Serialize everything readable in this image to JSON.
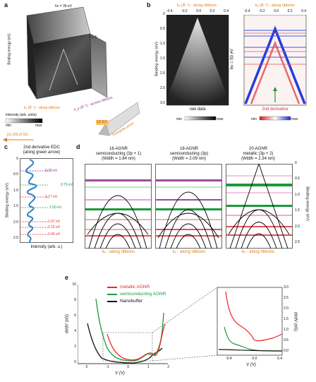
{
  "panels": {
    "a": "a",
    "b": "b",
    "c": "c",
    "d": "d",
    "e": "e"
  },
  "a": {
    "hv": "hν = 39 eV",
    "scale": "× 1.5",
    "y_label": "Binding energy (eV)",
    "y_ticks": [
      "0",
      "0.5",
      "1.0",
      "1.5",
      "2.0",
      "2.5",
      "3.0",
      "3.5",
      "4.0"
    ],
    "kx_label": "kₓ (Å⁻¹) - along ribbons",
    "ky_label": "k_y (Å⁻¹) - across ribbons",
    "colorbar_label": "Intensity (arb. units)",
    "cb_min": "min",
    "cb_max": "max",
    "sic_label": "[11-20] of SiC",
    "bz_label": "1D BZ",
    "prism_label": "triangular prism"
  },
  "b": {
    "top_axis_label": "kₓ (Å⁻¹) - along ribbons",
    "top_ticks": [
      "-0.4",
      "-0.2",
      "0.0",
      "0.2",
      "0.4"
    ],
    "y_label": "Binding energy (eV)",
    "y_ticks": [
      "0",
      "0.5",
      "1.0",
      "1.5",
      "2.0",
      "2.5",
      "3.0"
    ],
    "hv": "hν = 50 eV",
    "raw_label": "raw data",
    "deriv_label": "2nd derivative",
    "cb_min": "min",
    "cb_max": "max"
  },
  "c": {
    "title1": "2nd derivative EDC",
    "title2": "(along green arrow)",
    "y_label": "Binding energy (eV)",
    "x_label": "Intensity (arb. u.)",
    "y_ticks": [
      "0",
      "0.5",
      "1.0",
      "1.5",
      "2.0",
      "2.5"
    ],
    "peaks": [
      "0.38 eV",
      "0.79 eV",
      "1.17 eV",
      "1.50 eV",
      "1.97 eV",
      "2.15 eV",
      "2.40 eV"
    ]
  },
  "d": {
    "titles": [
      [
        "16-AGNR",
        "semiconducting (3p + 1)",
        "(Width = 1.84 nm)"
      ],
      [
        "18-AGNR",
        "semiconducting (3p)",
        "(Width = 2.09 nm)"
      ],
      [
        "20-AGNR",
        "metallic (3p + 2)",
        "(Width = 2.34 nm)"
      ]
    ],
    "x_label": "kₓ - along ribbons",
    "y_label": "Binding energy (eV)",
    "y_ticks": [
      "0",
      "0.5",
      "1.0",
      "1.5",
      "2.0",
      "2.5"
    ]
  },
  "e": {
    "y_label": "dI/dV (nS)",
    "x_label": "V (V)",
    "legend": [
      "metallic AGNR",
      "semiconducting AGNR",
      "Nanobuffer"
    ],
    "y_ticks": [
      "0",
      "2",
      "4",
      "6",
      "8",
      "10"
    ],
    "x_ticks": [
      "-2",
      "-1",
      "0",
      "1",
      "2"
    ],
    "inset_y_label": "dI/dV (nS)",
    "inset_x_label": "V (V)",
    "inset_y_ticks": [
      "0.0",
      "0.5",
      "1.0",
      "1.5",
      "2.0",
      "2.5",
      "3.0"
    ],
    "inset_x_ticks": [
      "-0.4",
      "0.0",
      "0.4"
    ]
  },
  "colors": {
    "red": "#e8282b",
    "green": "#1a9a3a",
    "black": "#111111",
    "orange": "#e07a1a",
    "purple": "#8a2a8a"
  }
}
